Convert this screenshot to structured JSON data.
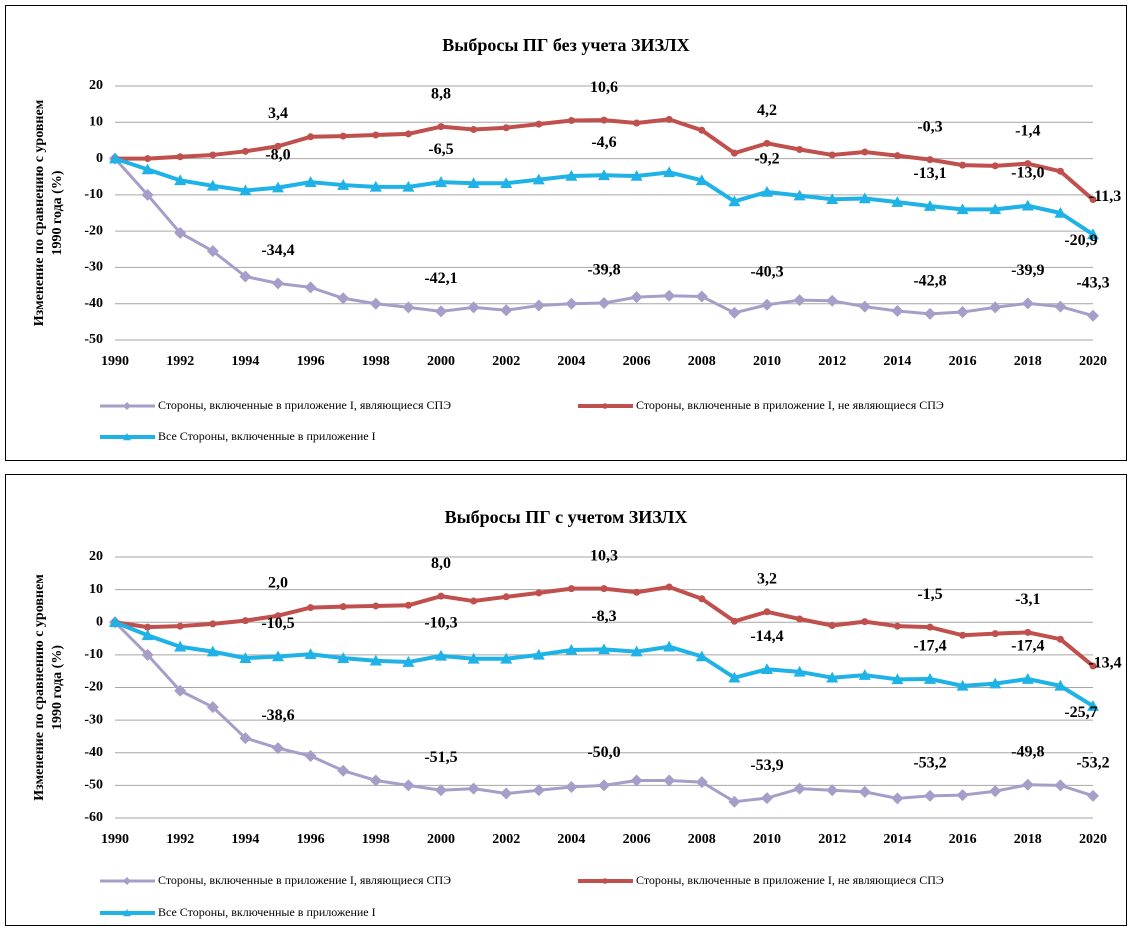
{
  "chart_data": [
    {
      "type": "line",
      "title": "Выбросы ПГ без учета ЗИЗЛХ",
      "ylabel": [
        "Изменение по сравнению с уровнем",
        "1990 года (%)"
      ],
      "x": [
        1990,
        1991,
        1992,
        1993,
        1994,
        1995,
        1996,
        1997,
        1998,
        1999,
        2000,
        2001,
        2002,
        2003,
        2004,
        2005,
        2006,
        2007,
        2008,
        2009,
        2010,
        2011,
        2012,
        2013,
        2014,
        2015,
        2016,
        2017,
        2018,
        2019,
        2020
      ],
      "xlim": [
        1990,
        2020
      ],
      "xticks": [
        1990,
        1992,
        1994,
        1996,
        1998,
        2000,
        2002,
        2004,
        2006,
        2008,
        2010,
        2012,
        2014,
        2016,
        2018,
        2020
      ],
      "ylim": [
        -50,
        20
      ],
      "yticks": [
        -50,
        -40,
        -30,
        -20,
        -10,
        0,
        10,
        20
      ],
      "grid": true,
      "series": [
        {
          "name": "Стороны, включенные в приложение I, являющиеся СПЭ",
          "color": "#a79dc9",
          "marker": "diamond",
          "values": [
            0,
            -10,
            -20.5,
            -25.5,
            -32.5,
            -34.4,
            -35.5,
            -38.5,
            -40,
            -41,
            -42.1,
            -41,
            -41.8,
            -40.5,
            -40,
            -39.8,
            -38.2,
            -37.8,
            -38,
            -42.5,
            -40.3,
            -39,
            -39.2,
            -40.8,
            -42,
            -42.8,
            -42.3,
            -41,
            -39.9,
            -40.8,
            -43.3
          ],
          "value_labels": [
            null,
            null,
            null,
            null,
            null,
            "-34,4",
            null,
            null,
            null,
            null,
            "-42,1",
            null,
            null,
            null,
            null,
            "-39,8",
            null,
            null,
            null,
            null,
            "-40,3",
            null,
            null,
            null,
            null,
            "-42,8",
            null,
            null,
            "-39,9",
            null,
            "-43,3"
          ]
        },
        {
          "name": "Стороны, включенные в приложение I, не являющиеся СПЭ",
          "color": "#c0504d",
          "marker": "circle",
          "values": [
            0,
            0,
            0.5,
            1,
            2,
            3.4,
            6,
            6.2,
            6.5,
            6.8,
            8.8,
            8,
            8.5,
            9.5,
            10.5,
            10.6,
            9.8,
            10.8,
            7.8,
            1.5,
            4.2,
            2.5,
            1,
            1.8,
            0.8,
            -0.3,
            -1.8,
            -2,
            -1.4,
            -3.5,
            -11.3
          ],
          "value_labels": [
            null,
            null,
            null,
            null,
            null,
            "3,4",
            null,
            null,
            null,
            null,
            "8,8",
            null,
            null,
            null,
            null,
            "10,6",
            null,
            null,
            null,
            null,
            "4,2",
            null,
            null,
            null,
            null,
            "-0,3",
            null,
            null,
            "-1,4",
            null,
            "-11,3"
          ]
        },
        {
          "name": "Все Стороны, включенные в приложение I",
          "color": "#1fb2e6",
          "marker": "triangle",
          "values": [
            0,
            -3,
            -6,
            -7.5,
            -8.8,
            -8,
            -6.5,
            -7.3,
            -7.8,
            -7.8,
            -6.5,
            -6.8,
            -6.8,
            -5.8,
            -4.8,
            -4.6,
            -4.8,
            -3.8,
            -6,
            -11.8,
            -9.2,
            -10.2,
            -11.2,
            -11,
            -12,
            -13.1,
            -14,
            -14,
            -13,
            -15,
            -20.9
          ],
          "value_labels": [
            null,
            null,
            null,
            null,
            null,
            "-8,0",
            null,
            null,
            null,
            null,
            "-6,5",
            null,
            null,
            null,
            null,
            "-4,6",
            null,
            null,
            null,
            null,
            "-9,2",
            null,
            null,
            null,
            null,
            "-13,1",
            null,
            null,
            "-13,0",
            null,
            "-20,9"
          ]
        }
      ]
    },
    {
      "type": "line",
      "title": "Выбросы ПГ с учетом ЗИЗЛХ",
      "ylabel": [
        "Изменение по сравнению с уровнем",
        "1990 года (%)"
      ],
      "x": [
        1990,
        1991,
        1992,
        1993,
        1994,
        1995,
        1996,
        1997,
        1998,
        1999,
        2000,
        2001,
        2002,
        2003,
        2004,
        2005,
        2006,
        2007,
        2008,
        2009,
        2010,
        2011,
        2012,
        2013,
        2014,
        2015,
        2016,
        2017,
        2018,
        2019,
        2020
      ],
      "xlim": [
        1990,
        2020
      ],
      "xticks": [
        1990,
        1992,
        1994,
        1996,
        1998,
        2000,
        2002,
        2004,
        2006,
        2008,
        2010,
        2012,
        2014,
        2016,
        2018,
        2020
      ],
      "ylim": [
        -60,
        20
      ],
      "yticks": [
        -60,
        -50,
        -40,
        -30,
        -20,
        -10,
        0,
        10,
        20
      ],
      "grid": true,
      "series": [
        {
          "name": "Стороны, включенные в приложение I, являющиеся СПЭ",
          "color": "#a79dc9",
          "marker": "diamond",
          "values": [
            0,
            -10,
            -21,
            -26,
            -35.5,
            -38.6,
            -41,
            -45.5,
            -48.5,
            -50,
            -51.5,
            -51,
            -52.5,
            -51.5,
            -50.5,
            -50,
            -48.5,
            -48.5,
            -49,
            -55,
            -53.9,
            -51,
            -51.5,
            -52,
            -54,
            -53.2,
            -53,
            -51.8,
            -49.8,
            -50,
            -53.2
          ],
          "value_labels": [
            null,
            null,
            null,
            null,
            null,
            "-38,6",
            null,
            null,
            null,
            null,
            "-51,5",
            null,
            null,
            null,
            null,
            "-50,0",
            null,
            null,
            null,
            null,
            "-53,9",
            null,
            null,
            null,
            null,
            "-53,2",
            null,
            null,
            "-49,8",
            null,
            "-53,2"
          ]
        },
        {
          "name": "Стороны, включенные в приложение I, не являющиеся СПЭ",
          "color": "#c0504d",
          "marker": "circle",
          "values": [
            0,
            -1.5,
            -1.2,
            -0.5,
            0.5,
            2,
            4.5,
            4.8,
            5,
            5.2,
            8,
            6.5,
            7.8,
            9,
            10.3,
            10.3,
            9.2,
            10.8,
            7.2,
            0.3,
            3.2,
            1,
            -1,
            0.2,
            -1.2,
            -1.5,
            -4,
            -3.5,
            -3.1,
            -5.2,
            -13.4
          ],
          "value_labels": [
            null,
            null,
            null,
            null,
            null,
            "2,0",
            null,
            null,
            null,
            null,
            "8,0",
            null,
            null,
            null,
            null,
            "10,3",
            null,
            null,
            null,
            null,
            "3,2",
            null,
            null,
            null,
            null,
            "-1,5",
            null,
            null,
            "-3,1",
            null,
            "-13,4"
          ]
        },
        {
          "name": "Все Стороны, включенные в приложение I",
          "color": "#1fb2e6",
          "marker": "triangle",
          "values": [
            0,
            -4,
            -7.5,
            -9,
            -11,
            -10.5,
            -9.8,
            -11,
            -11.8,
            -12.2,
            -10.3,
            -11.2,
            -11.2,
            -10,
            -8.5,
            -8.3,
            -9,
            -7.5,
            -10.5,
            -17,
            -14.4,
            -15.2,
            -17,
            -16.2,
            -17.5,
            -17.4,
            -19.5,
            -18.8,
            -17.4,
            -19.5,
            -25.7
          ],
          "value_labels": [
            null,
            null,
            null,
            null,
            null,
            "-10,5",
            null,
            null,
            null,
            null,
            "-10,3",
            null,
            null,
            null,
            null,
            "-8,3",
            null,
            null,
            null,
            null,
            "-14,4",
            null,
            null,
            null,
            null,
            "-17,4",
            null,
            null,
            "-17,4",
            null,
            "-25,7"
          ]
        }
      ]
    }
  ]
}
